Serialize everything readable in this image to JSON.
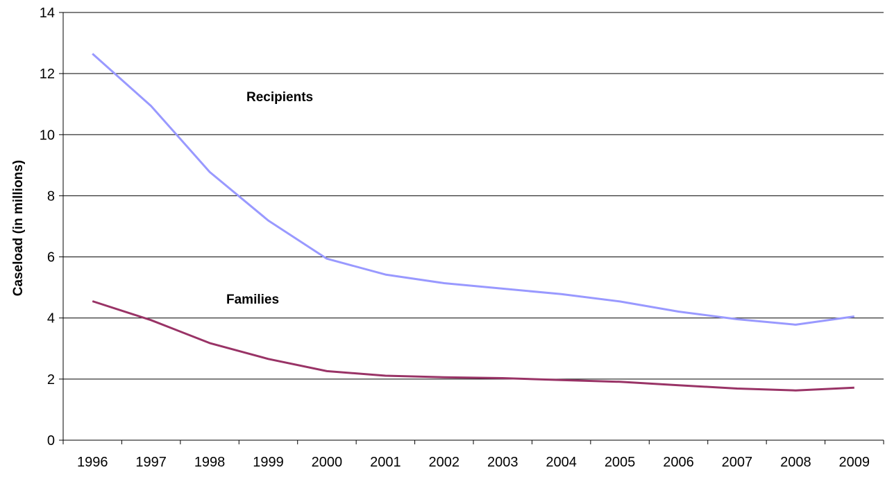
{
  "chart_data": {
    "type": "line",
    "title": "",
    "xlabel": "",
    "ylabel": "Caseload (in millions)",
    "categories": [
      "1996",
      "1997",
      "1998",
      "1999",
      "2000",
      "2001",
      "2002",
      "2003",
      "2004",
      "2005",
      "2006",
      "2007",
      "2008",
      "2009"
    ],
    "ylim": [
      0,
      14
    ],
    "yticks": [
      0,
      2,
      4,
      6,
      8,
      10,
      12,
      14
    ],
    "grid": "horizontal",
    "legend": "none",
    "series": [
      {
        "name": "Recipients",
        "color": "#9999ff",
        "values": [
          12.65,
          10.94,
          8.78,
          7.19,
          5.94,
          5.42,
          5.14,
          4.96,
          4.78,
          4.54,
          4.21,
          3.96,
          3.78,
          4.05
        ]
      },
      {
        "name": "Families",
        "color": "#993366",
        "values": [
          4.55,
          3.93,
          3.18,
          2.66,
          2.26,
          2.11,
          2.06,
          2.03,
          1.97,
          1.91,
          1.8,
          1.69,
          1.63,
          1.72
        ]
      }
    ]
  }
}
